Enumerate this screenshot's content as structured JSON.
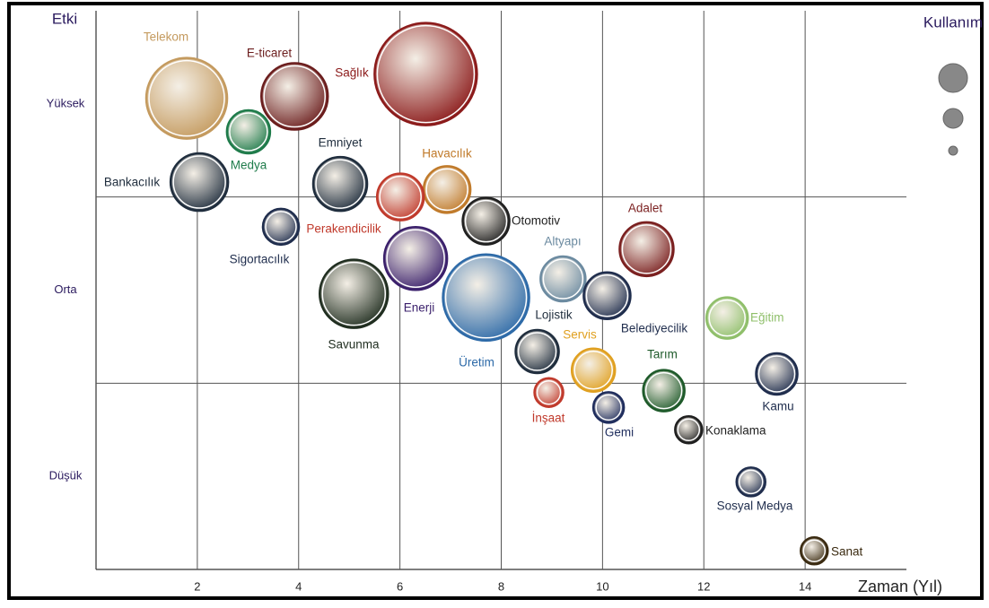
{
  "chart_data": {
    "type": "bubble",
    "y_label": "Etki",
    "x_label": "Zaman (Yıl)",
    "legend_title": "Kullanım",
    "labels": [
      "Telekom",
      "E-ticaret",
      "Sağlık",
      "Medya",
      "Bankacılık",
      "Emniyet",
      "Havacılık",
      "Perakendicilik",
      "Otomotiv",
      "Sigortacılık",
      "Adalet",
      "Altyapı",
      "Enerji",
      "Savunma",
      "Üretim",
      "Belediyecilik",
      "Lojistik",
      "Eğitim",
      "Servis",
      "Kamu",
      "Tarım",
      "İnşaat",
      "Gemi",
      "Konaklama",
      "Sosyal Medya",
      "Sanat"
    ],
    "x": [
      1.79,
      3.92,
      6.51,
      3.01,
      2.04,
      4.82,
      6.93,
      6.01,
      7.7,
      3.65,
      10.87,
      9.22,
      6.31,
      5.09,
      7.7,
      10.09,
      8.71,
      12.46,
      9.82,
      13.44,
      11.21,
      8.94,
      10.12,
      11.7,
      12.93,
      14.18
    ],
    "values": [
      2.53,
      2.54,
      2.66,
      2.35,
      2.08,
      2.07,
      2.04,
      2.0,
      1.87,
      1.84,
      1.72,
      1.56,
      1.67,
      1.48,
      1.46,
      1.47,
      1.17,
      1.35,
      1.07,
      1.05,
      0.96,
      0.95,
      0.87,
      0.75,
      0.47,
      0.1
    ],
    "sizes": [
      45,
      37,
      57,
      24,
      32,
      30,
      26,
      26,
      26,
      20,
      30,
      25,
      35,
      38,
      48,
      26,
      24,
      23,
      24,
      23,
      23,
      16,
      17,
      15,
      16,
      15
    ],
    "colors": [
      "#c49a5e",
      "#6b1d1d",
      "#8b1a1a",
      "#1e7b4a",
      "#1f2d3d",
      "#1f2d3d",
      "#c07a2a",
      "#c0392b",
      "#1f1f1f",
      "#1f2d4d",
      "#7a1f1f",
      "#6b8aa0",
      "#3a1f6b",
      "#1f2d1f",
      "#2d6aa8",
      "#1f2d4d",
      "#1f2d3d",
      "#8fbf6a",
      "#e0a020",
      "#1f2d4d",
      "#1e5a2a",
      "#c0392b",
      "#1f2d5d",
      "#1f1f1f",
      "#1f2d4d",
      "#3a2a10"
    ],
    "xlim": [
      0,
      16
    ],
    "xticks": [
      2,
      4,
      6,
      8,
      10,
      12,
      14
    ],
    "ylim": [
      0,
      3
    ],
    "yticks": [
      {
        "value": 0.5,
        "label": "Düşük"
      },
      {
        "value": 1.5,
        "label": "Orta"
      },
      {
        "value": 2.5,
        "label": "Yüksek"
      }
    ],
    "ygrid": [
      1,
      2
    ],
    "grid": true
  }
}
